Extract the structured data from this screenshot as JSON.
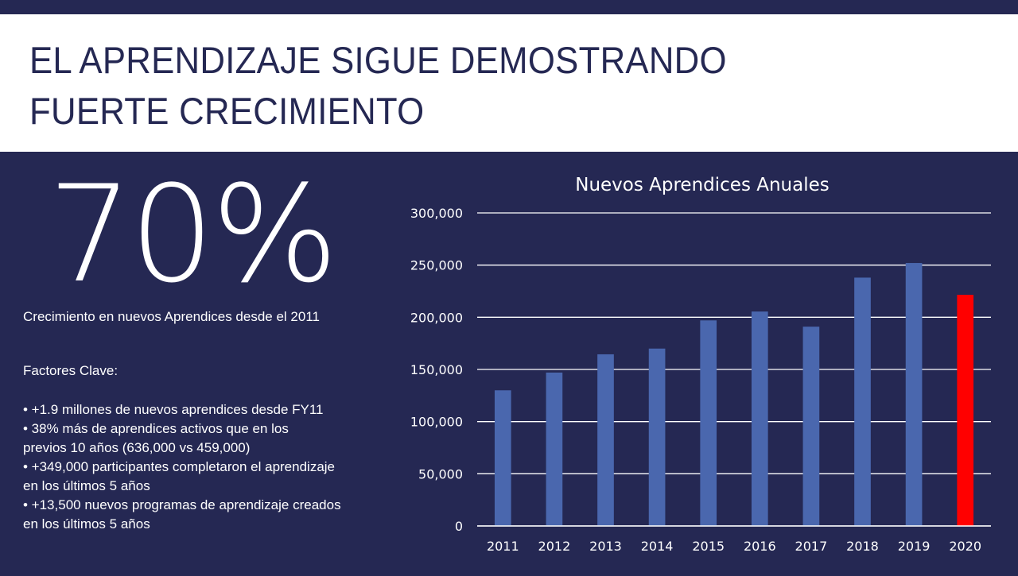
{
  "header": {
    "title_line1": "EL APRENDIZAJE SIGUE DEMOSTRANDO",
    "title_line2": "FUERTE CRECIMIENTO"
  },
  "highlight": {
    "value": "70%",
    "caption": "Crecimiento en nuevos Aprendices desde el 2011"
  },
  "factors": {
    "heading": "Factores Clave:",
    "items": [
      "• +1.9 millones de nuevos aprendices desde FY11",
      "• 38% más de aprendices activos que en los",
      "previos 10 años (636,000 vs 459,000)",
      "• +349,000 participantes completaron el aprendizaje",
      "en los últimos 5 años",
      "• +13,500 nuevos programas de aprendizaje creados",
      "en los últimos 5 años"
    ]
  },
  "colors": {
    "background": "#252853",
    "bar": "#4a67ae",
    "highlight_bar": "#ff0000",
    "grid": "#ffffff"
  },
  "chart_data": {
    "type": "bar",
    "title": "Nuevos Aprendices Anuales",
    "xlabel": "",
    "ylabel": "",
    "categories": [
      "2011",
      "2012",
      "2013",
      "2014",
      "2015",
      "2016",
      "2017",
      "2018",
      "2019",
      "2020"
    ],
    "values": [
      130000,
      147000,
      164500,
      170000,
      197000,
      205500,
      191000,
      238000,
      252000,
      221500
    ],
    "highlight_index": 9,
    "ylim": [
      0,
      300000
    ],
    "yticks": [
      0,
      50000,
      100000,
      150000,
      200000,
      250000,
      300000
    ],
    "ytick_labels": [
      "0",
      "50,000",
      "100,000",
      "150,000",
      "200,000",
      "250,000",
      "300,000"
    ],
    "grid": true,
    "legend": "none"
  }
}
